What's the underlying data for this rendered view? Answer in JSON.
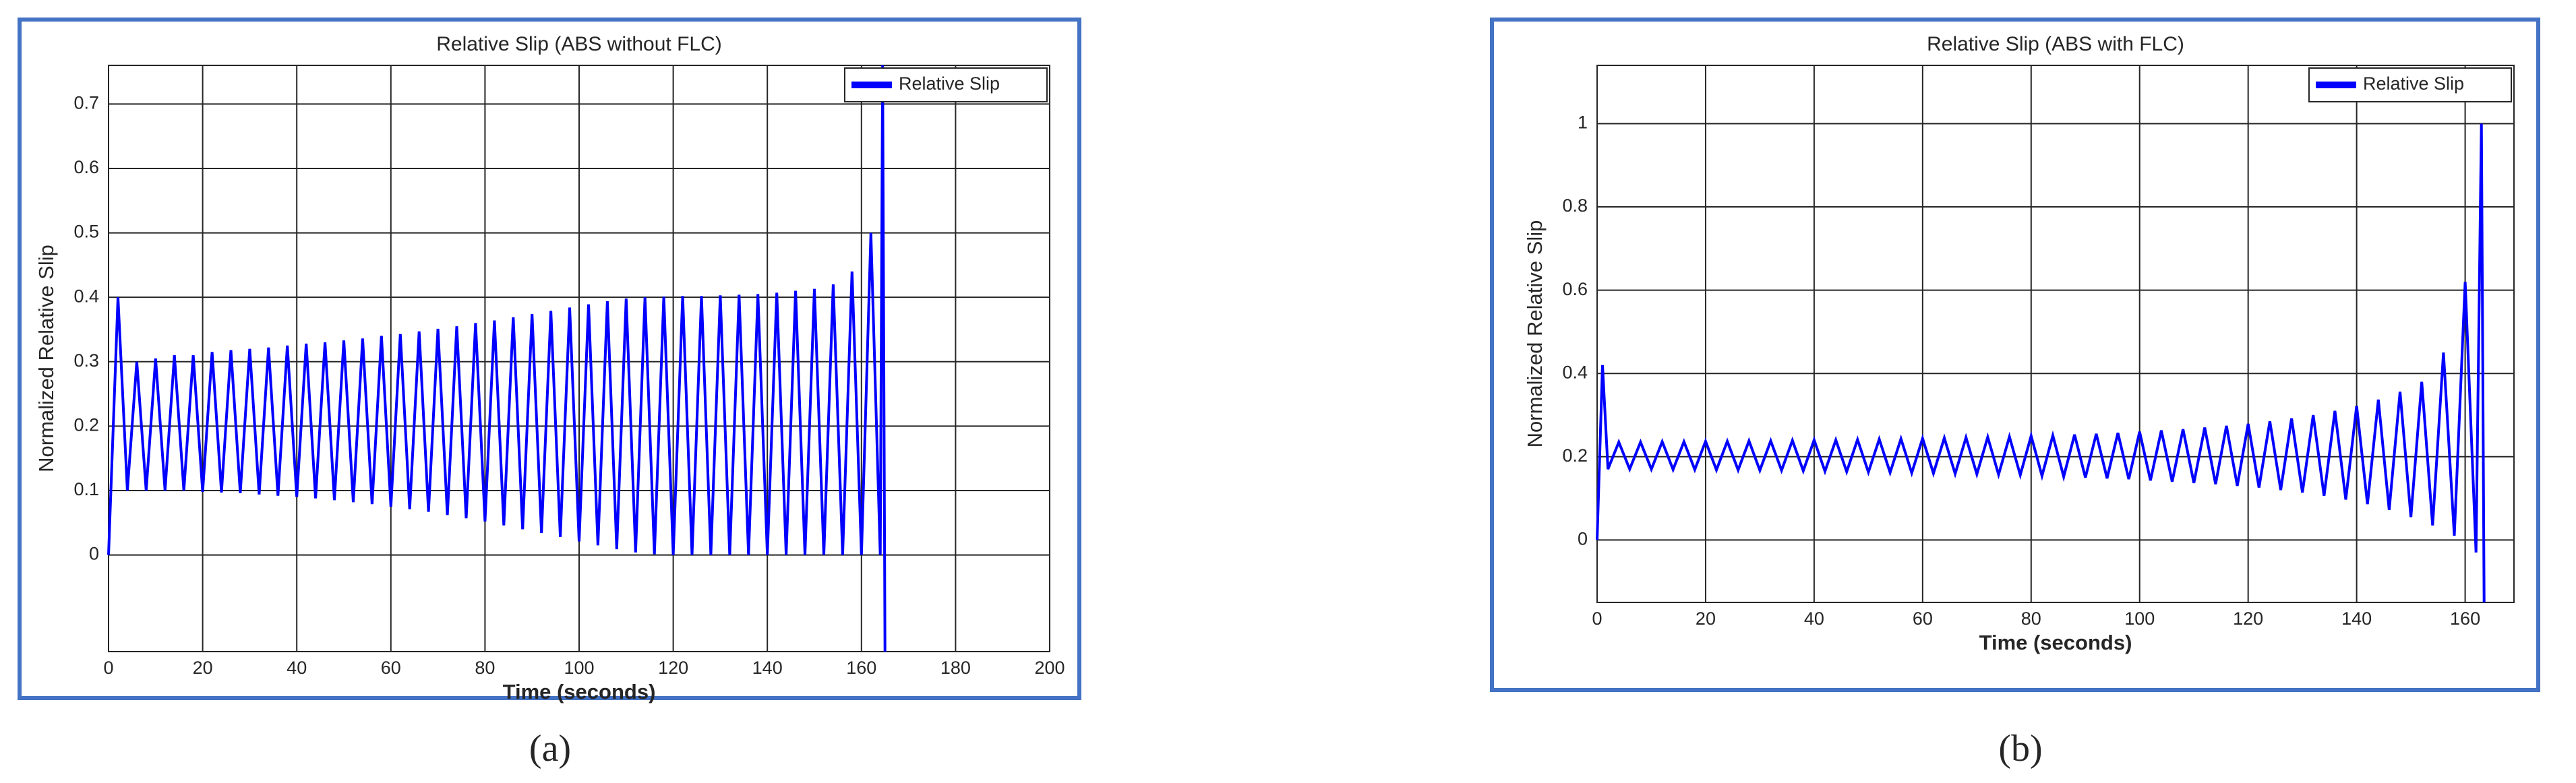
{
  "chart_data": [
    {
      "type": "line",
      "title": "Relative Slip (ABS without FLC)",
      "x_label": "Time (seconds)",
      "y_label": "Normalized Relative Slip",
      "caption": "(a)",
      "x": [
        0,
        2,
        4,
        6,
        8,
        10,
        12,
        14,
        16,
        18,
        20,
        22,
        24,
        26,
        28,
        30,
        32,
        34,
        36,
        38,
        40,
        42,
        44,
        46,
        48,
        50,
        52,
        54,
        56,
        58,
        60,
        62,
        64,
        66,
        68,
        70,
        72,
        74,
        76,
        78,
        80,
        82,
        84,
        86,
        88,
        90,
        92,
        94,
        96,
        98,
        100,
        102,
        104,
        106,
        108,
        110,
        112,
        114,
        116,
        118,
        120,
        122,
        124,
        126,
        128,
        130,
        132,
        134,
        136,
        138,
        140,
        142,
        144,
        146,
        148,
        150,
        152,
        154,
        156,
        158,
        160,
        162,
        164,
        164.5,
        165
      ],
      "series": [
        {
          "name": "Relative Slip",
          "color": "#0000ff",
          "values": [
            0,
            0.4,
            0.1,
            0.3,
            0.1,
            0.305,
            0.1,
            0.31,
            0.1,
            0.31,
            0.098,
            0.315,
            0.097,
            0.318,
            0.096,
            0.32,
            0.094,
            0.322,
            0.092,
            0.325,
            0.09,
            0.328,
            0.088,
            0.33,
            0.085,
            0.333,
            0.082,
            0.336,
            0.079,
            0.34,
            0.075,
            0.343,
            0.071,
            0.347,
            0.067,
            0.351,
            0.062,
            0.355,
            0.057,
            0.36,
            0.052,
            0.364,
            0.046,
            0.369,
            0.04,
            0.374,
            0.034,
            0.379,
            0.028,
            0.384,
            0.021,
            0.389,
            0.015,
            0.394,
            0.009,
            0.398,
            0.004,
            0.4,
            0.001,
            0.401,
            0,
            0.402,
            0,
            0.402,
            0,
            0.403,
            0,
            0.404,
            0,
            0.405,
            0,
            0.407,
            0,
            0.41,
            0,
            0.413,
            0,
            0.42,
            0,
            0.44,
            0,
            0.5,
            0,
            0.76,
            -0.15
          ]
        }
      ],
      "xlim": [
        0,
        200
      ],
      "xticks": [
        0,
        20,
        40,
        60,
        80,
        100,
        120,
        140,
        160,
        180,
        200
      ],
      "ylim": [
        -0.15,
        0.76
      ],
      "yticks": [
        0,
        0.1,
        0.2,
        0.3,
        0.4,
        0.5,
        0.6,
        0.7
      ],
      "grid": true,
      "legend": "upper right"
    },
    {
      "type": "line",
      "title": "Relative Slip (ABS with FLC)",
      "x_label": "Time (seconds)",
      "y_label": "Normalized Relative Slip",
      "caption": "(b)",
      "x": [
        0,
        1,
        2,
        4,
        6,
        8,
        10,
        12,
        14,
        16,
        18,
        20,
        22,
        24,
        26,
        28,
        30,
        32,
        34,
        36,
        38,
        40,
        42,
        44,
        46,
        48,
        50,
        52,
        54,
        56,
        58,
        60,
        62,
        64,
        66,
        68,
        70,
        72,
        74,
        76,
        78,
        80,
        82,
        84,
        86,
        88,
        90,
        92,
        94,
        96,
        98,
        100,
        102,
        104,
        106,
        108,
        110,
        112,
        114,
        116,
        118,
        120,
        122,
        124,
        126,
        128,
        130,
        132,
        134,
        136,
        138,
        140,
        142,
        144,
        146,
        148,
        150,
        152,
        154,
        156,
        158,
        160,
        162,
        163,
        163.5
      ],
      "series": [
        {
          "name": "Relative Slip",
          "color": "#0000ff",
          "values": [
            0,
            0.42,
            0.17,
            0.235,
            0.17,
            0.235,
            0.17,
            0.236,
            0.169,
            0.236,
            0.169,
            0.237,
            0.168,
            0.237,
            0.168,
            0.238,
            0.167,
            0.238,
            0.167,
            0.239,
            0.166,
            0.24,
            0.165,
            0.24,
            0.164,
            0.241,
            0.163,
            0.242,
            0.162,
            0.243,
            0.161,
            0.244,
            0.16,
            0.245,
            0.159,
            0.246,
            0.158,
            0.247,
            0.157,
            0.248,
            0.156,
            0.25,
            0.154,
            0.251,
            0.152,
            0.253,
            0.15,
            0.255,
            0.148,
            0.257,
            0.146,
            0.26,
            0.143,
            0.263,
            0.14,
            0.266,
            0.137,
            0.27,
            0.134,
            0.274,
            0.13,
            0.279,
            0.126,
            0.285,
            0.12,
            0.292,
            0.114,
            0.3,
            0.106,
            0.31,
            0.097,
            0.322,
            0.086,
            0.337,
            0.072,
            0.356,
            0.055,
            0.38,
            0.035,
            0.45,
            0.01,
            0.62,
            -0.03,
            1.0,
            -0.15
          ]
        }
      ],
      "xlim": [
        0,
        169
      ],
      "xticks": [
        0,
        20,
        40,
        60,
        80,
        100,
        120,
        140,
        160
      ],
      "ylim": [
        -0.15,
        1.14
      ],
      "yticks": [
        0,
        0.2,
        0.4,
        0.6,
        0.8,
        1
      ],
      "grid": true,
      "legend": "upper right"
    }
  ]
}
